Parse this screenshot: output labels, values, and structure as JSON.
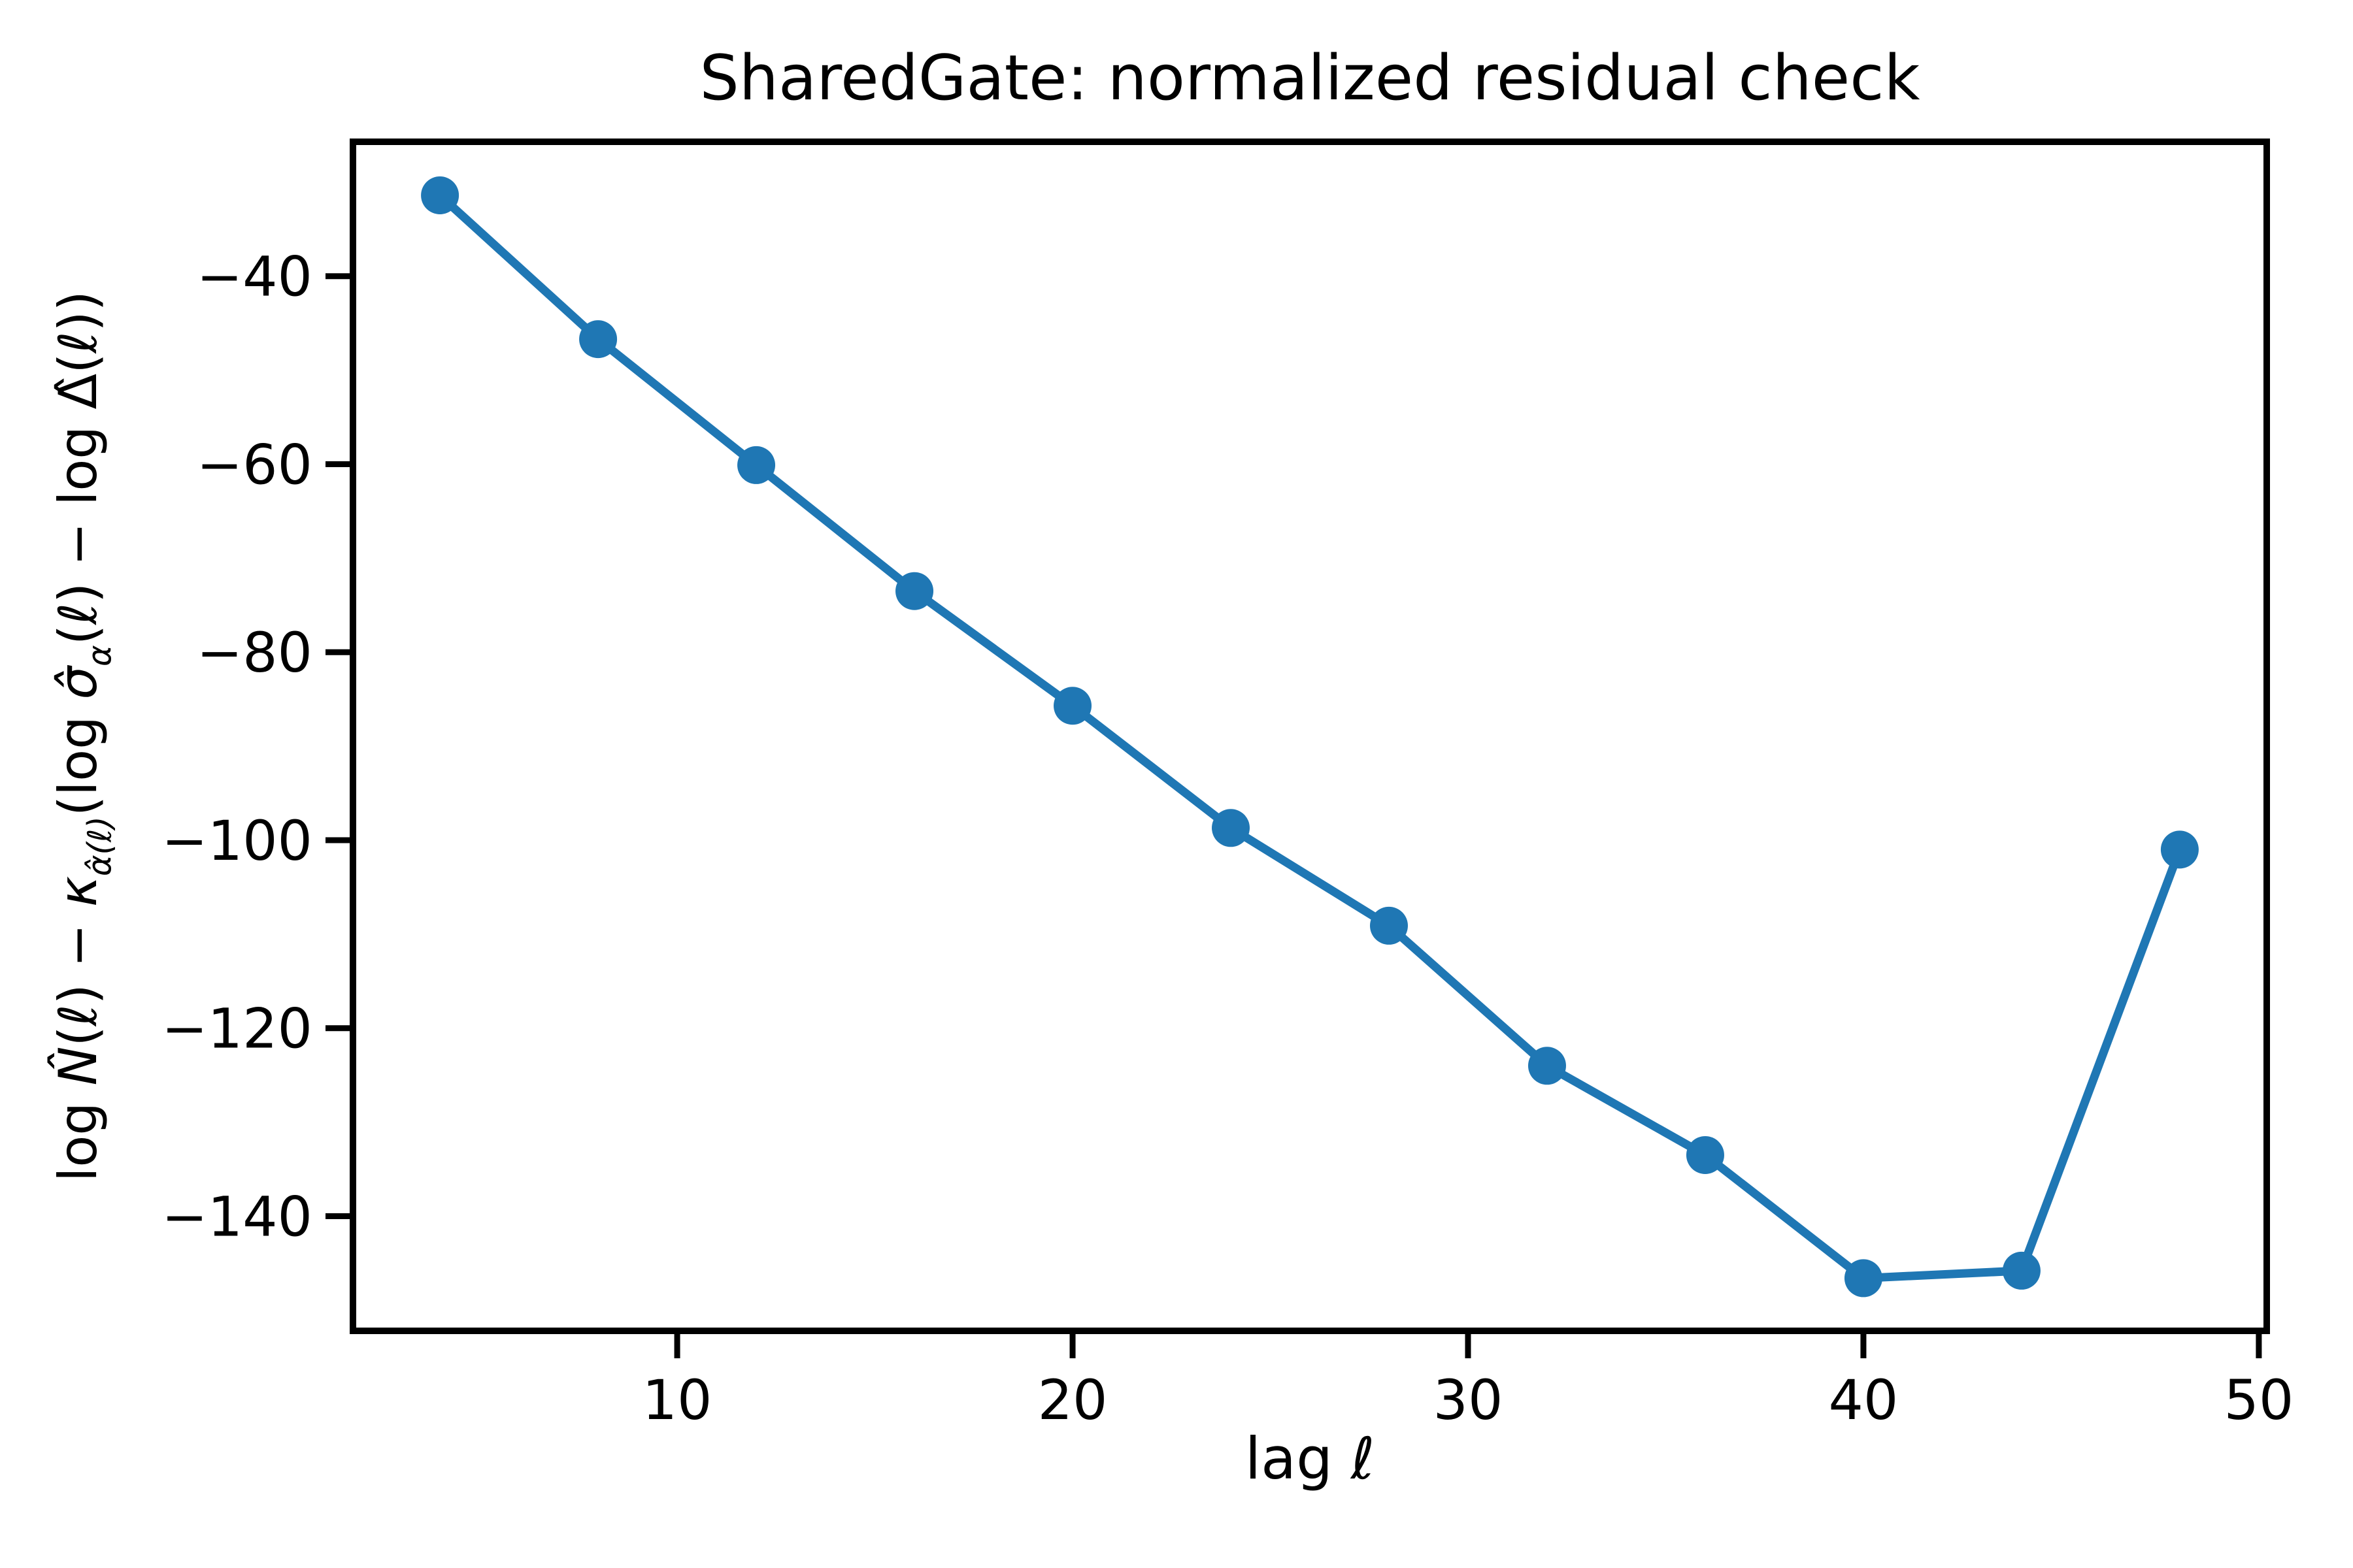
{
  "title": "SharedGate: normalized residual check",
  "xlabel": {
    "prefix": "lag ",
    "symbol": "ℓ"
  },
  "ylabel": {
    "segments": [
      {
        "t": "log "
      },
      {
        "t": "N̂"
      },
      {
        "t": "("
      },
      {
        "t": "ℓ"
      },
      {
        "t": ") − "
      },
      {
        "t": "κ"
      },
      {
        "t": "α̂(ℓ)"
      },
      {
        "t": "(log "
      },
      {
        "t": "σ̂"
      },
      {
        "t": "α"
      },
      {
        "t": "("
      },
      {
        "t": "ℓ"
      },
      {
        "t": ") − log "
      },
      {
        "t": "Δ̂"
      },
      {
        "t": "("
      },
      {
        "t": "ℓ"
      },
      {
        "t": "))"
      }
    ]
  },
  "chart_data": {
    "type": "line",
    "title": "SharedGate: normalized residual check",
    "xlabel": "lag ℓ",
    "ylabel": "log N̂(ℓ) − κ_{α̂(ℓ)}(log σ̂_α(ℓ) − log Δ̂(ℓ))",
    "x": [
      4,
      8,
      12,
      16,
      20,
      24,
      28,
      32,
      36,
      40,
      44,
      48
    ],
    "values": [
      -31.4,
      -46.7,
      -60.1,
      -73.5,
      -85.7,
      -98.7,
      -109.1,
      -124.0,
      -133.5,
      -146.6,
      -145.8,
      -101.0
    ],
    "xticks": [
      10,
      20,
      30,
      40,
      50
    ],
    "yticks": [
      -40,
      -60,
      -80,
      -100,
      -120,
      -140
    ],
    "xlim": [
      1.8,
      50.2
    ],
    "ylim": [
      -152.2,
      -25.7
    ],
    "grid": false,
    "legend": null,
    "line_color": "#1f77b4",
    "marker": "o",
    "marker_color": "#1f77b4",
    "axis_color": "#000000"
  }
}
